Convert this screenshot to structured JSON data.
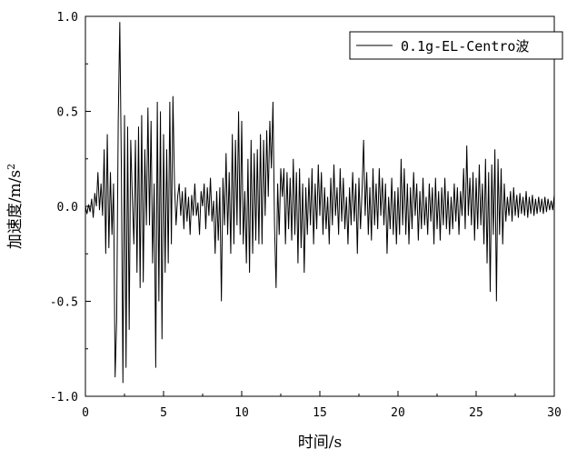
{
  "chart_data": {
    "type": "line",
    "title": "",
    "xlabel": "时间/s",
    "ylabel_main": "加速度/m/s",
    "ylabel_sup": "2",
    "xlim": [
      0,
      30
    ],
    "ylim": [
      -1.0,
      1.0
    ],
    "x_ticks": [
      0,
      5,
      10,
      15,
      20,
      25,
      30
    ],
    "x_tick_labels": [
      "0",
      "5",
      "10",
      "15",
      "20",
      "25",
      "30"
    ],
    "y_ticks": [
      -1.0,
      -0.5,
      0.0,
      0.5,
      1.0
    ],
    "y_tick_labels": [
      "-1.0",
      "-0.5",
      "0.0",
      "0.5",
      "1.0"
    ],
    "grid": false,
    "legend_position": "top-right",
    "series": [
      {
        "name": "0.1g-EL-Centro波",
        "color": "#000000",
        "points": [
          [
            0.0,
            0.0
          ],
          [
            0.1,
            -0.04
          ],
          [
            0.2,
            0.01
          ],
          [
            0.3,
            -0.03
          ],
          [
            0.4,
            0.04
          ],
          [
            0.5,
            -0.06
          ],
          [
            0.6,
            0.07
          ],
          [
            0.7,
            0.0
          ],
          [
            0.8,
            0.18
          ],
          [
            0.9,
            -0.02
          ],
          [
            1.0,
            0.12
          ],
          [
            1.1,
            -0.05
          ],
          [
            1.2,
            0.3
          ],
          [
            1.3,
            -0.25
          ],
          [
            1.4,
            0.38
          ],
          [
            1.5,
            -0.22
          ],
          [
            1.6,
            0.18
          ],
          [
            1.7,
            -0.15
          ],
          [
            1.8,
            0.12
          ],
          [
            1.9,
            -0.9
          ],
          [
            2.0,
            -0.6
          ],
          [
            2.1,
            0.45
          ],
          [
            2.2,
            0.97
          ],
          [
            2.3,
            0.2
          ],
          [
            2.4,
            -0.93
          ],
          [
            2.5,
            0.48
          ],
          [
            2.6,
            -0.85
          ],
          [
            2.7,
            0.42
          ],
          [
            2.8,
            -0.65
          ],
          [
            2.9,
            0.35
          ],
          [
            3.0,
            0.05
          ],
          [
            3.1,
            -0.2
          ],
          [
            3.2,
            0.35
          ],
          [
            3.3,
            -0.35
          ],
          [
            3.4,
            0.42
          ],
          [
            3.5,
            -0.43
          ],
          [
            3.6,
            0.48
          ],
          [
            3.7,
            -0.4
          ],
          [
            3.8,
            0.3
          ],
          [
            3.9,
            -0.1
          ],
          [
            4.0,
            0.52
          ],
          [
            4.1,
            -0.1
          ],
          [
            4.2,
            0.45
          ],
          [
            4.3,
            -0.3
          ],
          [
            4.4,
            0.12
          ],
          [
            4.5,
            -0.85
          ],
          [
            4.6,
            0.55
          ],
          [
            4.7,
            -0.5
          ],
          [
            4.8,
            0.5
          ],
          [
            4.9,
            -0.7
          ],
          [
            5.0,
            0.38
          ],
          [
            5.1,
            -0.35
          ],
          [
            5.2,
            0.3
          ],
          [
            5.3,
            -0.3
          ],
          [
            5.4,
            0.55
          ],
          [
            5.5,
            -0.2
          ],
          [
            5.6,
            0.58
          ],
          [
            5.7,
            0.12
          ],
          [
            5.8,
            -0.1
          ],
          [
            5.9,
            0.05
          ],
          [
            6.0,
            0.12
          ],
          [
            6.1,
            -0.05
          ],
          [
            6.2,
            0.08
          ],
          [
            6.3,
            -0.12
          ],
          [
            6.4,
            0.1
          ],
          [
            6.5,
            -0.08
          ],
          [
            6.6,
            0.05
          ],
          [
            6.7,
            -0.15
          ],
          [
            6.8,
            0.06
          ],
          [
            6.9,
            -0.05
          ],
          [
            7.0,
            0.12
          ],
          [
            7.1,
            -0.05
          ],
          [
            7.2,
            0.02
          ],
          [
            7.3,
            -0.15
          ],
          [
            7.4,
            0.08
          ],
          [
            7.5,
            0.0
          ],
          [
            7.6,
            0.12
          ],
          [
            7.7,
            -0.12
          ],
          [
            7.8,
            0.1
          ],
          [
            7.9,
            -0.05
          ],
          [
            8.0,
            0.15
          ],
          [
            8.1,
            -0.08
          ],
          [
            8.2,
            0.03
          ],
          [
            8.3,
            -0.25
          ],
          [
            8.4,
            0.08
          ],
          [
            8.5,
            -0.18
          ],
          [
            8.6,
            0.1
          ],
          [
            8.7,
            -0.5
          ],
          [
            8.8,
            0.15
          ],
          [
            8.9,
            -0.1
          ],
          [
            9.0,
            0.28
          ],
          [
            9.1,
            -0.15
          ],
          [
            9.2,
            0.18
          ],
          [
            9.3,
            -0.25
          ],
          [
            9.4,
            0.38
          ],
          [
            9.5,
            -0.2
          ],
          [
            9.6,
            0.35
          ],
          [
            9.7,
            -0.1
          ],
          [
            9.8,
            0.5
          ],
          [
            9.9,
            -0.15
          ],
          [
            10.0,
            0.45
          ],
          [
            10.1,
            -0.2
          ],
          [
            10.2,
            0.08
          ],
          [
            10.3,
            -0.3
          ],
          [
            10.4,
            0.25
          ],
          [
            10.5,
            -0.35
          ],
          [
            10.6,
            0.35
          ],
          [
            10.7,
            -0.25
          ],
          [
            10.8,
            0.28
          ],
          [
            10.9,
            -0.18
          ],
          [
            11.0,
            0.3
          ],
          [
            11.1,
            -0.2
          ],
          [
            11.2,
            0.38
          ],
          [
            11.3,
            -0.2
          ],
          [
            11.4,
            0.35
          ],
          [
            11.5,
            -0.05
          ],
          [
            11.6,
            0.4
          ],
          [
            11.7,
            0.05
          ],
          [
            11.8,
            0.45
          ],
          [
            11.9,
            0.2
          ],
          [
            12.0,
            0.55
          ],
          [
            12.1,
            -0.1
          ],
          [
            12.2,
            -0.43
          ],
          [
            12.3,
            0.12
          ],
          [
            12.4,
            -0.15
          ],
          [
            12.5,
            0.2
          ],
          [
            12.6,
            0.05
          ],
          [
            12.7,
            0.2
          ],
          [
            12.8,
            -0.2
          ],
          [
            12.9,
            0.18
          ],
          [
            13.0,
            -0.12
          ],
          [
            13.1,
            0.15
          ],
          [
            13.2,
            -0.18
          ],
          [
            13.3,
            0.25
          ],
          [
            13.4,
            -0.15
          ],
          [
            13.5,
            0.18
          ],
          [
            13.6,
            -0.3
          ],
          [
            13.7,
            0.2
          ],
          [
            13.8,
            -0.22
          ],
          [
            13.9,
            0.12
          ],
          [
            14.0,
            -0.35
          ],
          [
            14.1,
            0.1
          ],
          [
            14.2,
            -0.15
          ],
          [
            14.3,
            0.15
          ],
          [
            14.4,
            -0.1
          ],
          [
            14.5,
            0.2
          ],
          [
            14.6,
            -0.2
          ],
          [
            14.7,
            0.12
          ],
          [
            14.8,
            -0.12
          ],
          [
            14.9,
            0.22
          ],
          [
            15.0,
            -0.05
          ],
          [
            15.1,
            0.18
          ],
          [
            15.2,
            -0.15
          ],
          [
            15.3,
            0.1
          ],
          [
            15.4,
            -0.12
          ],
          [
            15.5,
            0.05
          ],
          [
            15.6,
            -0.2
          ],
          [
            15.7,
            0.15
          ],
          [
            15.8,
            -0.1
          ],
          [
            15.9,
            0.22
          ],
          [
            16.0,
            -0.05
          ],
          [
            16.1,
            0.1
          ],
          [
            16.2,
            -0.15
          ],
          [
            16.3,
            0.2
          ],
          [
            16.4,
            -0.08
          ],
          [
            16.5,
            0.15
          ],
          [
            16.6,
            -0.12
          ],
          [
            16.7,
            0.05
          ],
          [
            16.8,
            -0.2
          ],
          [
            16.9,
            0.1
          ],
          [
            17.0,
            -0.1
          ],
          [
            17.1,
            0.18
          ],
          [
            17.2,
            -0.08
          ],
          [
            17.3,
            0.12
          ],
          [
            17.4,
            -0.25
          ],
          [
            17.5,
            0.15
          ],
          [
            17.6,
            -0.12
          ],
          [
            17.7,
            0.08
          ],
          [
            17.8,
            0.35
          ],
          [
            17.9,
            -0.05
          ],
          [
            18.0,
            0.18
          ],
          [
            18.1,
            -0.15
          ],
          [
            18.2,
            0.1
          ],
          [
            18.3,
            -0.18
          ],
          [
            18.4,
            0.2
          ],
          [
            18.5,
            -0.1
          ],
          [
            18.6,
            0.12
          ],
          [
            18.7,
            -0.12
          ],
          [
            18.8,
            0.2
          ],
          [
            18.9,
            -0.05
          ],
          [
            19.0,
            0.15
          ],
          [
            19.1,
            -0.1
          ],
          [
            19.2,
            0.12
          ],
          [
            19.3,
            -0.25
          ],
          [
            19.4,
            0.05
          ],
          [
            19.5,
            -0.12
          ],
          [
            19.6,
            0.15
          ],
          [
            19.7,
            -0.15
          ],
          [
            19.8,
            0.08
          ],
          [
            19.9,
            -0.2
          ],
          [
            20.0,
            0.1
          ],
          [
            20.1,
            -0.15
          ],
          [
            20.2,
            0.25
          ],
          [
            20.3,
            -0.1
          ],
          [
            20.4,
            0.2
          ],
          [
            20.5,
            -0.15
          ],
          [
            20.6,
            0.12
          ],
          [
            20.7,
            -0.2
          ],
          [
            20.8,
            0.1
          ],
          [
            20.9,
            -0.12
          ],
          [
            21.0,
            0.18
          ],
          [
            21.1,
            -0.05
          ],
          [
            21.2,
            0.12
          ],
          [
            21.3,
            -0.18
          ],
          [
            21.4,
            0.08
          ],
          [
            21.5,
            -0.12
          ],
          [
            21.6,
            0.15
          ],
          [
            21.7,
            -0.1
          ],
          [
            21.8,
            0.05
          ],
          [
            21.9,
            -0.15
          ],
          [
            22.0,
            0.12
          ],
          [
            22.1,
            -0.08
          ],
          [
            22.2,
            0.1
          ],
          [
            22.3,
            -0.2
          ],
          [
            22.4,
            0.15
          ],
          [
            22.5,
            -0.12
          ],
          [
            22.6,
            0.08
          ],
          [
            22.7,
            -0.18
          ],
          [
            22.8,
            0.1
          ],
          [
            22.9,
            -0.1
          ],
          [
            23.0,
            0.15
          ],
          [
            23.1,
            -0.12
          ],
          [
            23.2,
            0.08
          ],
          [
            23.3,
            -0.15
          ],
          [
            23.4,
            0.05
          ],
          [
            23.5,
            -0.12
          ],
          [
            23.6,
            0.12
          ],
          [
            23.7,
            -0.08
          ],
          [
            23.8,
            0.1
          ],
          [
            23.9,
            -0.15
          ],
          [
            24.0,
            0.08
          ],
          [
            24.1,
            -0.05
          ],
          [
            24.2,
            0.2
          ],
          [
            24.3,
            -0.12
          ],
          [
            24.4,
            0.32
          ],
          [
            24.5,
            -0.05
          ],
          [
            24.6,
            0.15
          ],
          [
            24.7,
            -0.1
          ],
          [
            24.8,
            0.18
          ],
          [
            24.9,
            -0.18
          ],
          [
            25.0,
            0.15
          ],
          [
            25.1,
            -0.12
          ],
          [
            25.2,
            0.22
          ],
          [
            25.3,
            -0.1
          ],
          [
            25.4,
            0.12
          ],
          [
            25.5,
            -0.2
          ],
          [
            25.6,
            0.25
          ],
          [
            25.7,
            -0.3
          ],
          [
            25.8,
            0.18
          ],
          [
            25.9,
            -0.45
          ],
          [
            26.0,
            0.22
          ],
          [
            26.1,
            -0.15
          ],
          [
            26.2,
            0.3
          ],
          [
            26.3,
            -0.5
          ],
          [
            26.4,
            0.25
          ],
          [
            26.5,
            -0.15
          ],
          [
            26.6,
            0.2
          ],
          [
            26.7,
            -0.2
          ],
          [
            26.8,
            0.12
          ],
          [
            26.9,
            -0.08
          ],
          [
            27.0,
            0.05
          ],
          [
            27.1,
            -0.05
          ],
          [
            27.2,
            0.08
          ],
          [
            27.3,
            -0.08
          ],
          [
            27.4,
            0.1
          ],
          [
            27.5,
            -0.05
          ],
          [
            27.6,
            0.06
          ],
          [
            27.7,
            -0.06
          ],
          [
            27.8,
            0.07
          ],
          [
            27.9,
            -0.04
          ],
          [
            28.0,
            0.05
          ],
          [
            28.1,
            -0.05
          ],
          [
            28.2,
            0.08
          ],
          [
            28.3,
            -0.06
          ],
          [
            28.4,
            0.05
          ],
          [
            28.5,
            -0.04
          ],
          [
            28.6,
            0.06
          ],
          [
            28.7,
            -0.05
          ],
          [
            28.8,
            0.04
          ],
          [
            28.9,
            -0.04
          ],
          [
            29.0,
            0.05
          ],
          [
            29.1,
            -0.03
          ],
          [
            29.2,
            0.04
          ],
          [
            29.3,
            -0.04
          ],
          [
            29.4,
            0.05
          ],
          [
            29.5,
            -0.03
          ],
          [
            29.6,
            0.04
          ],
          [
            29.7,
            -0.02
          ],
          [
            29.8,
            0.03
          ],
          [
            29.9,
            -0.02
          ],
          [
            30.0,
            0.06
          ]
        ]
      }
    ]
  }
}
